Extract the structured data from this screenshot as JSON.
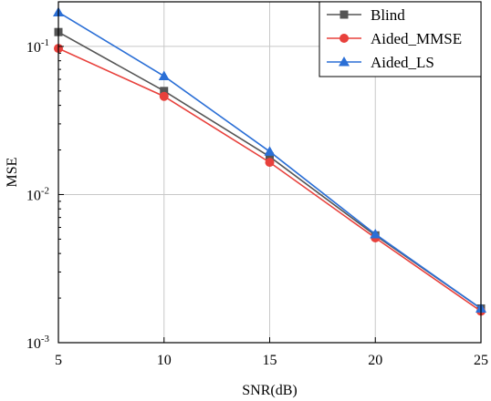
{
  "chart_data": {
    "type": "line",
    "title": "",
    "xlabel": "SNR(dB)",
    "ylabel": "MSE",
    "x": [
      5,
      10,
      15,
      20,
      25
    ],
    "xlim": [
      5,
      25
    ],
    "xticks": [
      "5",
      "10",
      "15",
      "20",
      "25"
    ],
    "yscale": "log",
    "ylim": [
      0.001,
      0.2
    ],
    "yticks": [
      {
        "value": 0.1,
        "base": "10",
        "exp": "-1"
      },
      {
        "value": 0.01,
        "base": "10",
        "exp": "-2"
      },
      {
        "value": 0.001,
        "base": "10",
        "exp": "-3"
      }
    ],
    "grid": true,
    "legend_position": "top-right",
    "series": [
      {
        "name": "Blind",
        "color": "#555555",
        "marker": "square",
        "values": [
          0.125,
          0.05,
          0.018,
          0.0053,
          0.0017
        ]
      },
      {
        "name": "Aided_MMSE",
        "color": "#e8413c",
        "marker": "circle",
        "values": [
          0.097,
          0.046,
          0.0165,
          0.0051,
          0.00163
        ]
      },
      {
        "name": "Aided_LS",
        "color": "#2b6fd6",
        "marker": "triangle",
        "values": [
          0.17,
          0.063,
          0.0195,
          0.0054,
          0.0017
        ]
      }
    ]
  }
}
